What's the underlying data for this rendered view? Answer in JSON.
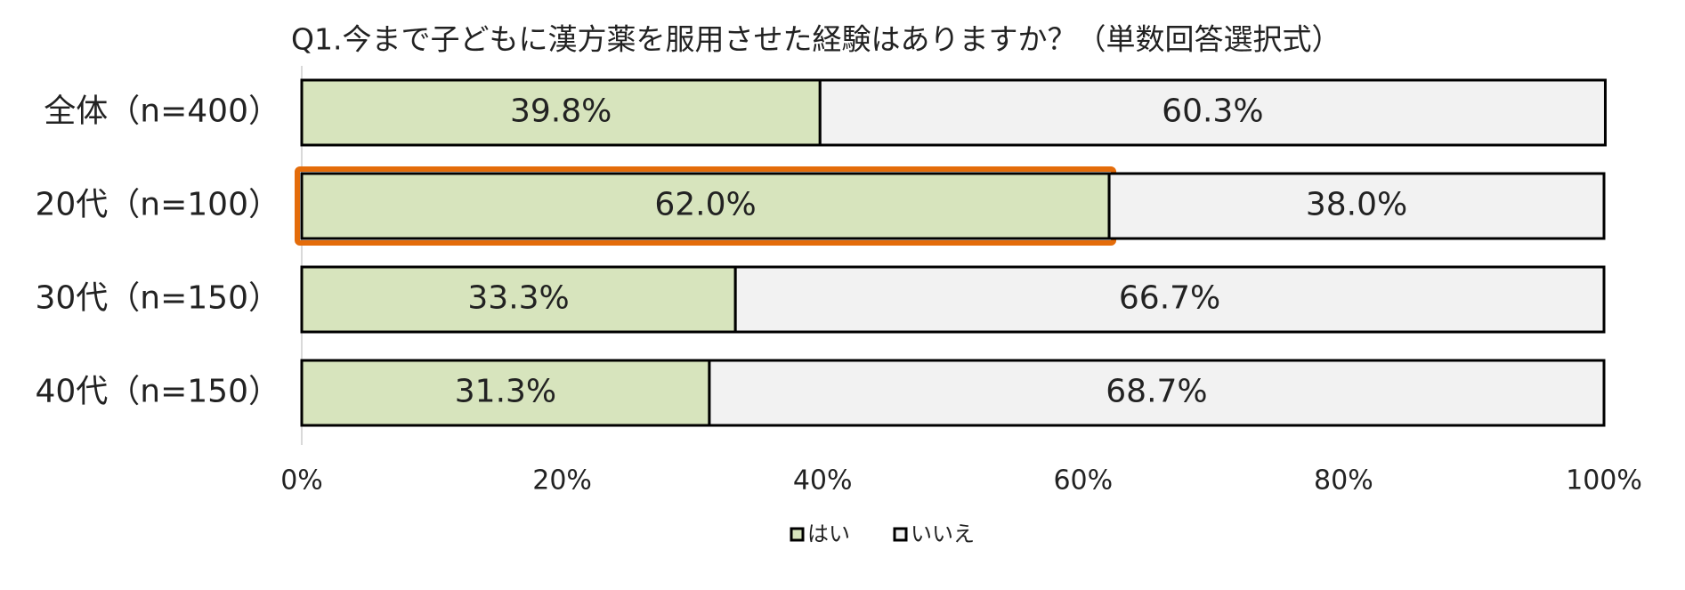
{
  "chart_data": {
    "type": "stacked_barh",
    "title": "Q1.今まで子どもに漢方薬を服用させた経験はありますか？（単数回答選択式）",
    "categories": [
      "全体（n=400）",
      "20代（n=100）",
      "30代（n=150）",
      "40代（n=150）"
    ],
    "series": [
      {
        "name": "はい",
        "color": "#d7e4bd",
        "values": [
          39.8,
          62.0,
          33.3,
          31.3
        ],
        "value_labels": [
          "39.8%",
          "62.0%",
          "33.3%",
          "31.3%"
        ]
      },
      {
        "name": "いいえ",
        "color": "#f2f2f2",
        "values": [
          60.3,
          38.0,
          66.7,
          68.7
        ],
        "value_labels": [
          "60.3%",
          "38.0%",
          "66.7%",
          "68.7%"
        ]
      }
    ],
    "xlim": [
      0,
      100
    ],
    "xticks": [
      {
        "value": 0,
        "label": "0%"
      },
      {
        "value": 20,
        "label": "20%"
      },
      {
        "value": 40,
        "label": "40%"
      },
      {
        "value": 60,
        "label": "60%"
      },
      {
        "value": 80,
        "label": "80%"
      },
      {
        "value": 100,
        "label": "100%"
      }
    ],
    "highlight_color": "#e46c0a",
    "legend": "bottom"
  }
}
